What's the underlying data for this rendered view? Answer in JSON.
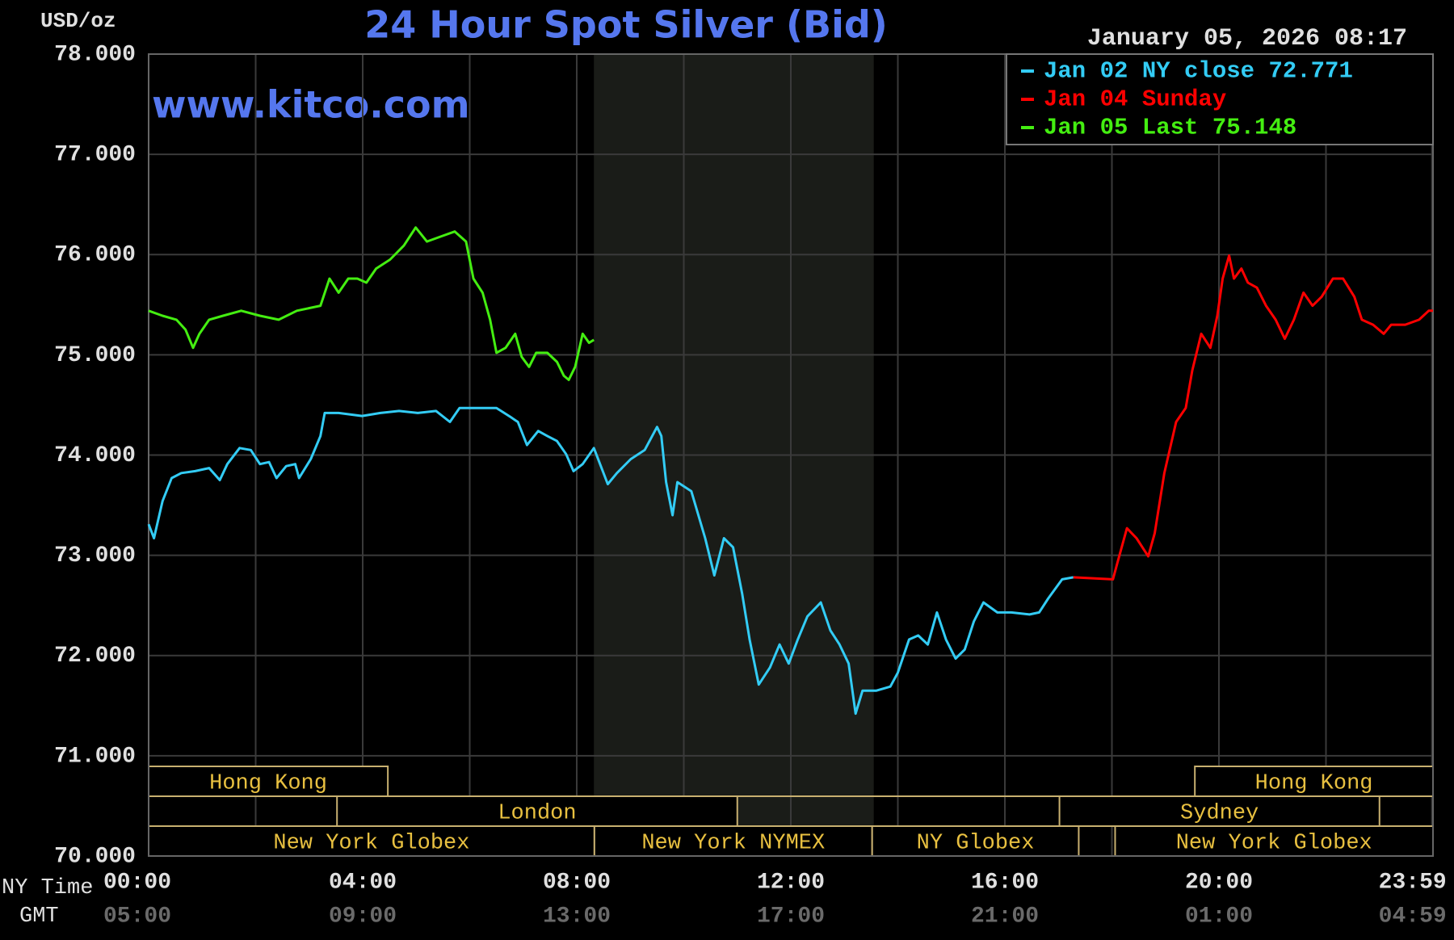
{
  "chart_data": {
    "type": "line",
    "title": "24 Hour Spot Silver (Bid)",
    "y_unit": "USD/oz",
    "timestamp": "January 05, 2026 08:17",
    "watermark": "www.kitco.com",
    "x_label": "NY Time",
    "x2_label": "GMT",
    "xlim": [
      0,
      24
    ],
    "xticks": [
      {
        "value": 0,
        "label": "00:00"
      },
      {
        "value": 4,
        "label": "04:00"
      },
      {
        "value": 8,
        "label": "08:00"
      },
      {
        "value": 12,
        "label": "12:00"
      },
      {
        "value": 16,
        "label": "16:00"
      },
      {
        "value": 20,
        "label": "20:00"
      },
      {
        "value": 23.98,
        "label": "23:59"
      }
    ],
    "x2tick_labels": [
      "05:00",
      "09:00",
      "13:00",
      "17:00",
      "21:00",
      "01:00",
      "04:59"
    ],
    "xgrid": [
      2,
      6,
      10,
      14,
      18,
      22,
      24
    ],
    "ylim": [
      70,
      78
    ],
    "yticks": [
      {
        "value": 70,
        "label": "70.000"
      },
      {
        "value": 71,
        "label": "71.000"
      },
      {
        "value": 72,
        "label": "72.000"
      },
      {
        "value": 73,
        "label": "73.000"
      },
      {
        "value": 74,
        "label": "74.000"
      },
      {
        "value": 75,
        "label": "75.000"
      },
      {
        "value": 76,
        "label": "76.000"
      },
      {
        "value": 77,
        "label": "77.000"
      },
      {
        "value": 78,
        "label": "78.000"
      }
    ],
    "grid": true,
    "shaded_x": [
      8.32,
      13.55
    ],
    "session_rows": [
      [
        {
          "label": "Hong Kong",
          "start": 0,
          "end": 4.47
        },
        {
          "label": "Hong Kong",
          "start": 19.55,
          "end": 24
        }
      ],
      [
        {
          "label": "London",
          "start": 3.52,
          "end": 11.0
        },
        {
          "label": "Sydney",
          "start": 17.02,
          "end": 23.0
        }
      ],
      [
        {
          "label": "New York Globex",
          "start": 0,
          "end": 8.33
        },
        {
          "label": "New York NYMEX",
          "start": 8.33,
          "end": 13.52
        },
        {
          "label": "NY Globex",
          "start": 13.52,
          "end": 17.38
        },
        {
          "label": "New York Globex",
          "start": 18.06,
          "end": 24
        }
      ]
    ],
    "series": [
      {
        "name": "Jan 02 NY close 72.771",
        "color": "#33ccf5",
        "x": [
          0,
          0.1,
          0.26,
          0.43,
          0.61,
          0.87,
          1.13,
          1.33,
          1.47,
          1.7,
          1.91,
          2.08,
          2.25,
          2.39,
          2.57,
          2.74,
          2.81,
          3.03,
          3.21,
          3.29,
          3.55,
          3.99,
          4.33,
          4.68,
          5.03,
          5.37,
          5.63,
          5.81,
          6.24,
          6.5,
          6.76,
          6.9,
          7.07,
          7.28,
          7.45,
          7.63,
          7.8,
          7.94,
          8.11,
          8.32,
          8.58,
          8.75,
          9.01,
          9.27,
          9.5,
          9.58,
          9.67,
          9.79,
          9.88,
          10.14,
          10.4,
          10.57,
          10.75,
          10.92,
          11.09,
          11.23,
          11.4,
          11.61,
          11.79,
          11.96,
          12.13,
          12.31,
          12.56,
          12.74,
          12.91,
          13.08,
          13.21,
          13.34,
          13.6,
          13.86,
          14.0,
          14.21,
          14.38,
          14.56,
          14.73,
          14.9,
          15.08,
          15.25,
          15.42,
          15.6,
          15.86,
          16.12,
          16.46,
          16.64,
          16.81,
          17.07,
          17.28
        ],
        "values": [
          73.31,
          73.17,
          73.54,
          73.77,
          73.82,
          73.84,
          73.87,
          73.75,
          73.91,
          74.07,
          74.05,
          73.91,
          73.93,
          73.77,
          73.89,
          73.91,
          73.77,
          73.96,
          74.19,
          74.42,
          74.42,
          74.39,
          74.42,
          74.44,
          74.42,
          74.44,
          74.33,
          74.47,
          74.47,
          74.47,
          74.38,
          74.33,
          74.1,
          74.24,
          74.19,
          74.14,
          74.01,
          73.84,
          73.91,
          74.07,
          73.71,
          73.82,
          73.96,
          74.05,
          74.28,
          74.19,
          73.73,
          73.4,
          73.73,
          73.64,
          73.17,
          72.8,
          73.17,
          73.08,
          72.62,
          72.16,
          71.71,
          71.88,
          72.11,
          71.92,
          72.16,
          72.39,
          72.53,
          72.25,
          72.11,
          71.92,
          71.42,
          71.65,
          71.65,
          71.69,
          71.83,
          72.16,
          72.2,
          72.11,
          72.43,
          72.16,
          71.97,
          72.06,
          72.34,
          72.53,
          72.43,
          72.43,
          72.41,
          72.43,
          72.57,
          72.76,
          72.78
        ]
      },
      {
        "name": "Jan 04 Sunday",
        "color": "#ff0000",
        "x": [
          17.28,
          18.02,
          18.11,
          18.28,
          18.46,
          18.68,
          18.8,
          18.98,
          19.2,
          19.38,
          19.5,
          19.67,
          19.84,
          19.97,
          20.07,
          20.19,
          20.28,
          20.42,
          20.54,
          20.71,
          20.88,
          21.06,
          21.23,
          21.4,
          21.58,
          21.75,
          21.92,
          22.13,
          22.32,
          22.53,
          22.67,
          22.88,
          23.08,
          23.22,
          23.48,
          23.74,
          23.92,
          24.0
        ],
        "values": [
          72.78,
          72.76,
          72.94,
          73.27,
          73.17,
          72.99,
          73.22,
          73.82,
          74.33,
          74.47,
          74.84,
          75.21,
          75.07,
          75.39,
          75.76,
          75.99,
          75.76,
          75.86,
          75.72,
          75.67,
          75.49,
          75.35,
          75.16,
          75.35,
          75.62,
          75.49,
          75.58,
          75.76,
          75.76,
          75.58,
          75.35,
          75.3,
          75.21,
          75.3,
          75.3,
          75.35,
          75.44,
          75.44
        ]
      },
      {
        "name": "Jan 05 Last 75.148",
        "color": "#44ee11",
        "x": [
          0,
          0.26,
          0.52,
          0.69,
          0.83,
          0.95,
          1.13,
          1.39,
          1.73,
          2.08,
          2.43,
          2.77,
          3.21,
          3.38,
          3.55,
          3.73,
          3.9,
          4.07,
          4.25,
          4.51,
          4.77,
          4.99,
          5.2,
          5.46,
          5.72,
          5.93,
          6.07,
          6.24,
          6.38,
          6.5,
          6.67,
          6.85,
          6.97,
          7.11,
          7.24,
          7.45,
          7.63,
          7.76,
          7.85,
          7.97,
          8.11,
          8.23,
          8.32
        ],
        "values": [
          75.44,
          75.39,
          75.35,
          75.25,
          75.07,
          75.21,
          75.35,
          75.39,
          75.44,
          75.39,
          75.35,
          75.44,
          75.49,
          75.76,
          75.62,
          75.76,
          75.76,
          75.72,
          75.86,
          75.95,
          76.09,
          76.27,
          76.13,
          76.18,
          76.23,
          76.13,
          75.76,
          75.62,
          75.35,
          75.02,
          75.07,
          75.21,
          74.98,
          74.88,
          75.02,
          75.02,
          74.93,
          74.79,
          74.75,
          74.88,
          75.21,
          75.12,
          75.15
        ]
      }
    ]
  }
}
